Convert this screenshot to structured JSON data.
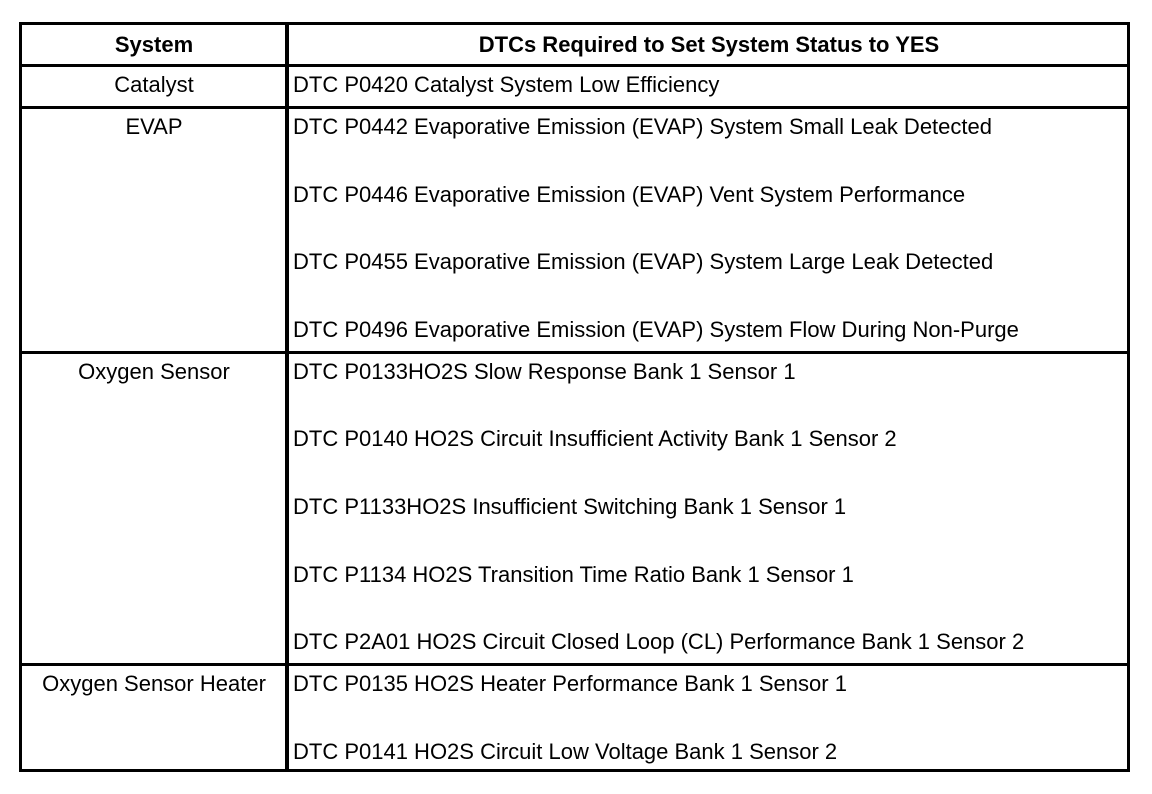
{
  "table": {
    "header": [
      "System",
      "DTCs Required to Set System Status to YES"
    ],
    "rows": [
      {
        "system": "Catalyst",
        "dtcs": [
          "DTC P0420 Catalyst System Low Efficiency"
        ]
      },
      {
        "system": "EVAP",
        "dtcs": [
          "DTC P0442 Evaporative Emission (EVAP) System Small Leak Detected",
          "DTC P0446 Evaporative Emission (EVAP) Vent System Performance",
          "DTC P0455 Evaporative Emission (EVAP) System Large Leak Detected",
          "DTC P0496 Evaporative Emission (EVAP) System Flow During Non-Purge"
        ]
      },
      {
        "system": "Oxygen Sensor",
        "dtcs": [
          "DTC P0133HO2S Slow Response Bank 1 Sensor 1",
          "DTC P0140 HO2S Circuit Insufficient Activity Bank 1 Sensor 2",
          "DTC P1133HO2S Insufficient Switching Bank 1 Sensor 1",
          "DTC P1134 HO2S Transition Time Ratio Bank 1 Sensor 1",
          "DTC P2A01 HO2S Circuit Closed Loop (CL) Performance Bank 1 Sensor 2"
        ]
      },
      {
        "system": "Oxygen Sensor Heater",
        "dtcs": [
          "DTC P0135 HO2S Heater Performance Bank 1 Sensor 1",
          "DTC P0141 HO2S Circuit Low Voltage Bank 1 Sensor 2"
        ]
      }
    ]
  }
}
